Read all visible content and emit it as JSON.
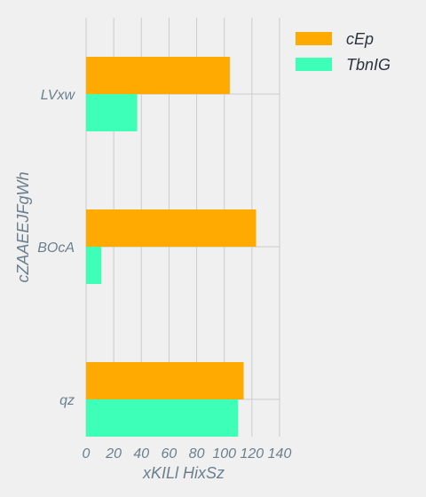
{
  "chart_data": {
    "type": "bar",
    "orientation": "horizontal",
    "categories": [
      "LVxw",
      "BOcA",
      "qz"
    ],
    "series": [
      {
        "name": "cEp",
        "values": [
          104,
          123,
          114
        ],
        "color": "#ffaa00"
      },
      {
        "name": "TbnIG",
        "values": [
          37,
          11,
          110
        ],
        "color": "#3dffb8"
      }
    ],
    "xlabel": "xKILl HixSz",
    "ylabel": "cZAAEEJFgWh",
    "xlim": [
      0,
      140
    ],
    "xticks": [
      "0",
      "20",
      "40",
      "60",
      "80",
      "100",
      "120",
      "140"
    ],
    "grid": true,
    "legend_position": "top-right"
  }
}
